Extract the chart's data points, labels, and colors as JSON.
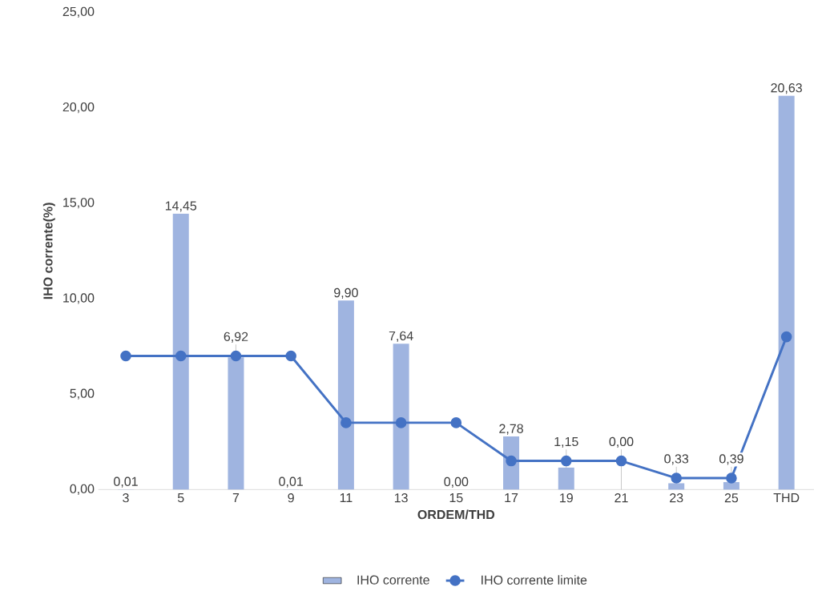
{
  "chart_data": {
    "type": "bar",
    "xlabel": "ORDEM/THD",
    "ylabel": "IHO corrente(%)",
    "categories": [
      "3",
      "5",
      "7",
      "9",
      "11",
      "13",
      "15",
      "17",
      "19",
      "21",
      "23",
      "25",
      "THD"
    ],
    "series": [
      {
        "name": "IHO corrente",
        "color": "#9fb4e0",
        "values": [
          0.01,
          14.45,
          6.92,
          0.01,
          9.9,
          7.64,
          0.0,
          2.78,
          1.15,
          0.0,
          0.33,
          0.39,
          20.63
        ],
        "value_labels": [
          "0,01",
          "14,45",
          "6,92",
          "0,01",
          "9,90",
          "7,64",
          "0,00",
          "2,78",
          "1,15",
          "0,00",
          "0,33",
          "0,39",
          "20,63"
        ]
      },
      {
        "name": "IHO corrente limite",
        "type": "line",
        "color": "#4472c4",
        "marker": "circle",
        "values": [
          7.0,
          7.0,
          7.0,
          7.0,
          3.5,
          3.5,
          3.5,
          1.5,
          1.5,
          1.5,
          0.6,
          0.6,
          8.0
        ]
      }
    ],
    "ylim": [
      0,
      25
    ],
    "yticks": [
      {
        "value": 0,
        "label": "0,00"
      },
      {
        "value": 5,
        "label": "5,00"
      },
      {
        "value": 10,
        "label": "10,00"
      },
      {
        "value": 15,
        "label": "15,00"
      },
      {
        "value": 20,
        "label": "20,00"
      },
      {
        "value": 25,
        "label": "25,00"
      }
    ],
    "grid": false,
    "legend": "bottom"
  }
}
